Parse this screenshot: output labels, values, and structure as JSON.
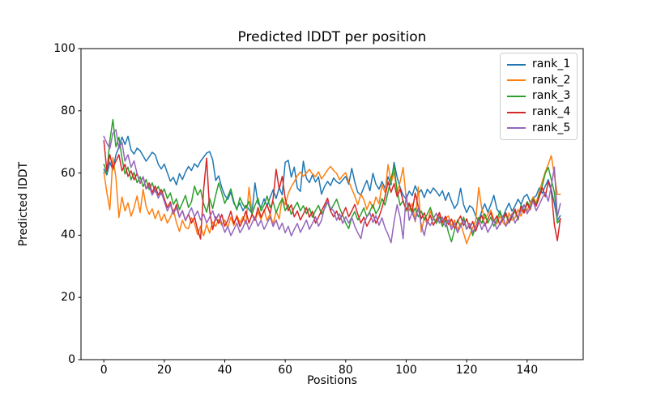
{
  "chart_data": {
    "type": "line",
    "title": "Predicted lDDT per position",
    "xlabel": "Positions",
    "ylabel": "Predicted lDDT",
    "xlim": [
      -7.55,
      158.55
    ],
    "ylim": [
      0,
      100
    ],
    "xticks": [
      0,
      20,
      40,
      60,
      80,
      100,
      120,
      140
    ],
    "yticks": [
      0,
      20,
      40,
      60,
      80,
      100
    ],
    "grid": false,
    "legend_position": "upper right",
    "x_start": 0,
    "axis_color": "#000000",
    "background_color": "#ffffff",
    "series": [
      {
        "name": "rank_1",
        "color": "#1f77b4",
        "values": [
          61.2,
          59.4,
          63.5,
          61.0,
          65.8,
          68.3,
          71.6,
          69.2,
          71.8,
          67.4,
          66.1,
          68.0,
          67.2,
          65.5,
          63.8,
          65.2,
          66.7,
          65.9,
          62.8,
          61.3,
          62.9,
          60.1,
          57.4,
          58.6,
          56.2,
          59.8,
          57.9,
          60.3,
          62.1,
          60.8,
          63.0,
          61.9,
          63.8,
          65.1,
          66.4,
          66.9,
          64.2,
          57.6,
          59.1,
          55.3,
          52.8,
          51.5,
          53.9,
          50.2,
          48.7,
          50.4,
          47.9,
          49.6,
          48.3,
          47.1,
          56.8,
          50.3,
          48.9,
          51.7,
          49.4,
          52.2,
          54.6,
          51.8,
          55.3,
          53.0,
          63.4,
          64.1,
          58.7,
          61.9,
          55.2,
          54.1,
          63.8,
          58.3,
          56.9,
          59.4,
          57.1,
          58.8,
          53.2,
          55.7,
          57.3,
          56.0,
          58.4,
          57.2,
          56.6,
          57.8,
          58.9,
          56.4,
          61.5,
          57.1,
          53.8,
          52.9,
          55.4,
          57.6,
          54.3,
          59.9,
          56.4,
          54.8,
          57.3,
          55.1,
          58.8,
          56.2,
          63.4,
          58.6,
          55.3,
          52.9,
          51.6,
          54.2,
          52.7,
          55.9,
          53.4,
          54.6,
          52.1,
          54.8,
          53.5,
          55.2,
          54.0,
          52.6,
          54.3,
          51.2,
          53.7,
          50.9,
          48.6,
          50.2,
          55.1,
          49.8,
          47.3,
          49.5,
          48.7,
          46.2,
          44.5,
          47.8,
          50.1,
          47.4,
          49.9,
          52.8,
          48.5,
          46.9,
          45.8,
          48.2,
          50.3,
          47.7,
          49.4,
          51.6,
          49.9,
          52.4,
          53.1,
          50.6,
          51.9,
          52.7,
          55.2,
          53.4,
          55.8,
          57.9,
          54.6,
          50.2,
          44.8,
          46.3
        ]
      },
      {
        "name": "rank_2",
        "color": "#ff7f0e",
        "values": [
          60.3,
          53.8,
          48.2,
          64.9,
          58.6,
          45.7,
          52.3,
          47.8,
          50.4,
          46.1,
          48.9,
          52.6,
          47.3,
          54.8,
          49.2,
          46.7,
          48.5,
          45.3,
          47.9,
          44.6,
          46.8,
          43.9,
          45.7,
          48.3,
          44.1,
          41.2,
          44.8,
          42.5,
          42.1,
          45.6,
          43.8,
          40.2,
          42.9,
          39.8,
          43.5,
          40.7,
          44.3,
          42.8,
          45.1,
          43.2,
          44.9,
          42.4,
          45.8,
          43.1,
          46.4,
          44.0,
          45.9,
          43.6,
          55.4,
          47.2,
          44.8,
          47.5,
          45.1,
          48.2,
          44.7,
          46.9,
          43.5,
          47.8,
          45.2,
          52.1,
          49.8,
          53.4,
          55.6,
          57.2,
          59.1,
          60.3,
          58.9,
          60.0,
          61.2,
          59.7,
          58.8,
          60.4,
          58.1,
          59.5,
          61.0,
          62.1,
          60.8,
          59.9,
          57.8,
          59.2,
          60.1,
          57.3,
          54.9,
          52.6,
          49.8,
          53.2,
          51.4,
          48.3,
          50.9,
          48.7,
          52.3,
          50.1,
          56.2,
          53.8,
          62.7,
          56.9,
          60.2,
          53.7,
          57.1,
          61.8,
          51.8,
          47.9,
          50.2,
          44.3,
          55.5,
          41.0,
          45.7,
          43.5,
          47.8,
          45.2,
          44.6,
          46.9,
          43.7,
          45.4,
          46.2,
          42.8,
          44.9,
          41.7,
          43.8,
          40.6,
          37.3,
          39.9,
          42.4,
          44.7,
          55.3,
          48.6,
          45.2,
          46.8,
          48.1,
          44.9,
          43.6,
          46.3,
          44.2,
          42.9,
          47.2,
          44.8,
          45.6,
          48.3,
          46.1,
          49.8,
          47.9,
          50.2,
          52.3,
          50.4,
          53.8,
          57.2,
          60.4,
          62.8,
          65.6,
          59.3,
          53.1,
          53.2
        ]
      },
      {
        "name": "rank_3",
        "color": "#2ca02c",
        "values": [
          62.8,
          60.1,
          70.3,
          77.2,
          68.4,
          71.5,
          64.8,
          59.7,
          61.9,
          57.8,
          60.2,
          56.9,
          58.8,
          55.6,
          57.9,
          54.7,
          56.8,
          53.9,
          55.7,
          53.1,
          54.9,
          51.8,
          53.6,
          49.9,
          51.7,
          48.2,
          50.4,
          52.8,
          48.9,
          50.7,
          55.8,
          52.9,
          54.6,
          50.1,
          47.4,
          51.8,
          48.6,
          52.9,
          56.8,
          53.7,
          50.2,
          52.4,
          54.9,
          50.8,
          48.1,
          52.1,
          49.9,
          48.7,
          50.9,
          46.8,
          49.6,
          51.9,
          47.8,
          49.7,
          52.6,
          48.9,
          50.8,
          47.2,
          49.9,
          51.7,
          47.9,
          49.8,
          46.7,
          48.9,
          50.6,
          47.8,
          49.5,
          46.9,
          48.7,
          45.8,
          47.9,
          49.6,
          46.8,
          48.5,
          50.7,
          47.9,
          49.8,
          51.6,
          48.7,
          46.4,
          43.9,
          42.1,
          45.8,
          47.6,
          44.9,
          46.7,
          48.8,
          45.9,
          47.7,
          49.8,
          46.9,
          48.6,
          51.8,
          49.7,
          53.9,
          58.2,
          62.1,
          54.3,
          49.6,
          51.2,
          47.8,
          49.9,
          46.8,
          48.7,
          45.9,
          47.8,
          44.9,
          46.8,
          48.9,
          45.7,
          43.8,
          45.9,
          42.8,
          44.9,
          40.8,
          37.9,
          41.8,
          44.9,
          42.7,
          45.8,
          41.9,
          43.8,
          39.9,
          42.8,
          45.7,
          43.8,
          46.9,
          43.9,
          45.8,
          42.9,
          44.8,
          47.9,
          44.8,
          46.7,
          43.9,
          45.8,
          47.9,
          44.9,
          49.8,
          47.7,
          50.8,
          48.9,
          51.7,
          49.8,
          52.9,
          55.8,
          59.9,
          61.8,
          57.9,
          53.8,
          43.9,
          45.2
        ]
      },
      {
        "name": "rank_4",
        "color": "#d62728",
        "values": [
          70.4,
          60.8,
          65.9,
          61.7,
          63.8,
          65.9,
          60.7,
          62.8,
          58.9,
          60.7,
          57.8,
          59.9,
          56.7,
          58.8,
          54.9,
          56.8,
          53.7,
          55.8,
          52.9,
          54.7,
          51.8,
          48.9,
          50.7,
          46.8,
          49.9,
          45.8,
          47.9,
          44.7,
          46.8,
          43.9,
          45.8,
          41.9,
          38.8,
          54.7,
          64.8,
          47.9,
          41.8,
          45.9,
          43.8,
          46.7,
          42.9,
          44.8,
          47.7,
          43.8,
          45.9,
          42.8,
          44.9,
          47.8,
          43.9,
          46.7,
          44.8,
          48.9,
          45.8,
          47.7,
          49.8,
          46.9,
          51.8,
          61.2,
          54.8,
          58.9,
          51.8,
          47.9,
          49.8,
          45.9,
          47.8,
          44.9,
          46.8,
          48.9,
          45.8,
          47.7,
          43.9,
          45.8,
          47.9,
          49.8,
          51.9,
          47.8,
          45.9,
          47.8,
          44.9,
          46.8,
          48.9,
          45.9,
          47.8,
          49.9,
          46.8,
          43.9,
          45.8,
          42.9,
          44.8,
          46.9,
          43.8,
          45.9,
          48.8,
          52.3,
          57.2,
          53.8,
          56.6,
          52.4,
          54.9,
          50.8,
          48.2,
          50.4,
          47.6,
          53.6,
          49.1,
          45.3,
          47.2,
          44.3,
          46.4,
          43.2,
          45.1,
          47.3,
          44.2,
          46.1,
          43.4,
          45.2,
          42.3,
          44.4,
          46.2,
          43.1,
          45.3,
          42.2,
          44.4,
          41.3,
          44.2,
          46.4,
          43.1,
          45.2,
          47.3,
          44.4,
          46.2,
          43.3,
          45.4,
          47.2,
          44.1,
          46.3,
          48.4,
          45.2,
          49.3,
          47.1,
          50.4,
          48.2,
          51.3,
          49.4,
          52.2,
          55.3,
          52.4,
          57.2,
          54.3,
          43.4,
          38.2,
          45.4
        ]
      },
      {
        "name": "rank_5",
        "color": "#9467bd",
        "values": [
          71.8,
          69.6,
          67.9,
          72.8,
          73.9,
          67.8,
          69.9,
          63.8,
          65.9,
          61.8,
          63.9,
          59.8,
          56.9,
          58.8,
          54.9,
          55.8,
          52.9,
          54.8,
          51.9,
          53.8,
          50.9,
          47.8,
          49.9,
          46.8,
          48.9,
          45.8,
          47.9,
          44.8,
          46.9,
          48.8,
          45.9,
          47.8,
          44.9,
          46.8,
          43.9,
          45.8,
          47.9,
          44.8,
          46.9,
          43.8,
          40.9,
          42.8,
          39.9,
          41.8,
          43.9,
          40.8,
          42.4,
          44.9,
          41.8,
          43.9,
          45.8,
          42.9,
          44.8,
          41.9,
          43.8,
          45.9,
          42.8,
          44.9,
          41.8,
          43.9,
          40.8,
          42.9,
          39.8,
          41.9,
          43.8,
          40.9,
          42.8,
          44.9,
          41.9,
          43.8,
          45.9,
          42.9,
          44.8,
          48.9,
          50.8,
          48.7,
          47.9,
          44.8,
          46.9,
          43.8,
          45.9,
          43.9,
          45.8,
          42.9,
          40.8,
          38.9,
          43.8,
          45.9,
          47.2,
          44.1,
          46.3,
          43.2,
          45.6,
          42.4,
          40.2,
          37.6,
          44.3,
          49.8,
          45.7,
          38.9,
          53.2,
          44.8,
          47.3,
          44.6,
          48.9,
          43.2,
          39.9,
          44.7,
          43.1,
          45.4,
          47.1,
          43.9,
          45.8,
          42.7,
          44.9,
          41.8,
          43.9,
          40.8,
          42.9,
          44.8,
          41.9,
          43.8,
          40.9,
          42.8,
          44.9,
          41.8,
          43.9,
          40.9,
          42.8,
          44.9,
          41.9,
          43.8,
          45.9,
          42.9,
          44.8,
          46.9,
          43.9,
          45.8,
          47.9,
          49.8,
          46.9,
          48.8,
          50.9,
          47.9,
          49.8,
          51.9,
          53.8,
          50.9,
          55.8,
          61.9,
          45.9,
          50.2
        ]
      }
    ]
  }
}
